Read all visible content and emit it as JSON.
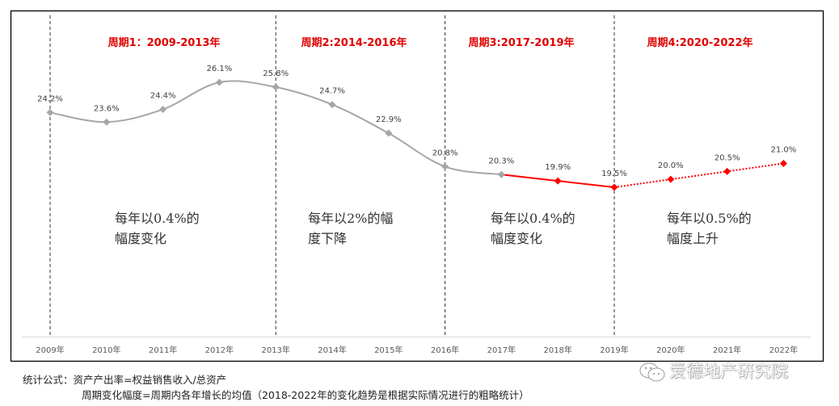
{
  "chart_data": {
    "type": "line",
    "categories": [
      "2009年",
      "2010年",
      "2011年",
      "2012年",
      "2013年",
      "2014年",
      "2015年",
      "2016年",
      "2017年",
      "2018年",
      "2019年",
      "2020年",
      "2021年",
      "2022年"
    ],
    "values": [
      24.2,
      23.6,
      24.4,
      26.1,
      25.8,
      24.7,
      22.9,
      20.8,
      20.3,
      19.9,
      19.5,
      20.0,
      20.5,
      21.0
    ],
    "value_labels": [
      "24.2%",
      "23.6%",
      "24.4%",
      "26.1%",
      "25.8%",
      "24.7%",
      "22.9%",
      "20.8%",
      "20.3%",
      "19.9%",
      "19.5%",
      "20.0%",
      "20.5%",
      "21.0%"
    ],
    "unit": "%",
    "series_segments": [
      {
        "name": "history",
        "from": 0,
        "to": 8,
        "color": "#a6a6a6",
        "style": "solid-smooth"
      },
      {
        "name": "period3",
        "from": 8,
        "to": 10,
        "color": "#ff0000",
        "style": "solid"
      },
      {
        "name": "forecast",
        "from": 10,
        "to": 13,
        "color": "#ff0000",
        "style": "dotted"
      }
    ],
    "periods": [
      {
        "title": "周期1：2009-2013年",
        "note_line1": "每年以0.4%的",
        "note_line2": "幅度变化"
      },
      {
        "title": "周期2:2014-2016年",
        "note_line1": "每年以2%的幅",
        "note_line2": "度下降"
      },
      {
        "title": "周期3:2017-2019年",
        "note_line1": "每年以0.4%的",
        "note_line2": "幅度变化"
      },
      {
        "title": "周期4:2020-2022年",
        "note_line1": "每年以0.5%的",
        "note_line2": "幅度上升"
      }
    ],
    "dividers_after_index": [
      0,
      4,
      7,
      10
    ],
    "title": "",
    "xlabel": "",
    "ylabel": "",
    "grid": false,
    "legend": "none"
  },
  "footer": {
    "line1": "统计公式：资产产出率=权益销售收入/总资产",
    "line2": "周期变化幅度=周期内各年增长的均值（2018-2022年的变化趋势是根据实际情况进行的粗略统计）"
  },
  "watermark": "爱德地产研究院",
  "colors": {
    "gray": "#a6a6a6",
    "red": "#ff0000",
    "title_red": "#e00000"
  }
}
